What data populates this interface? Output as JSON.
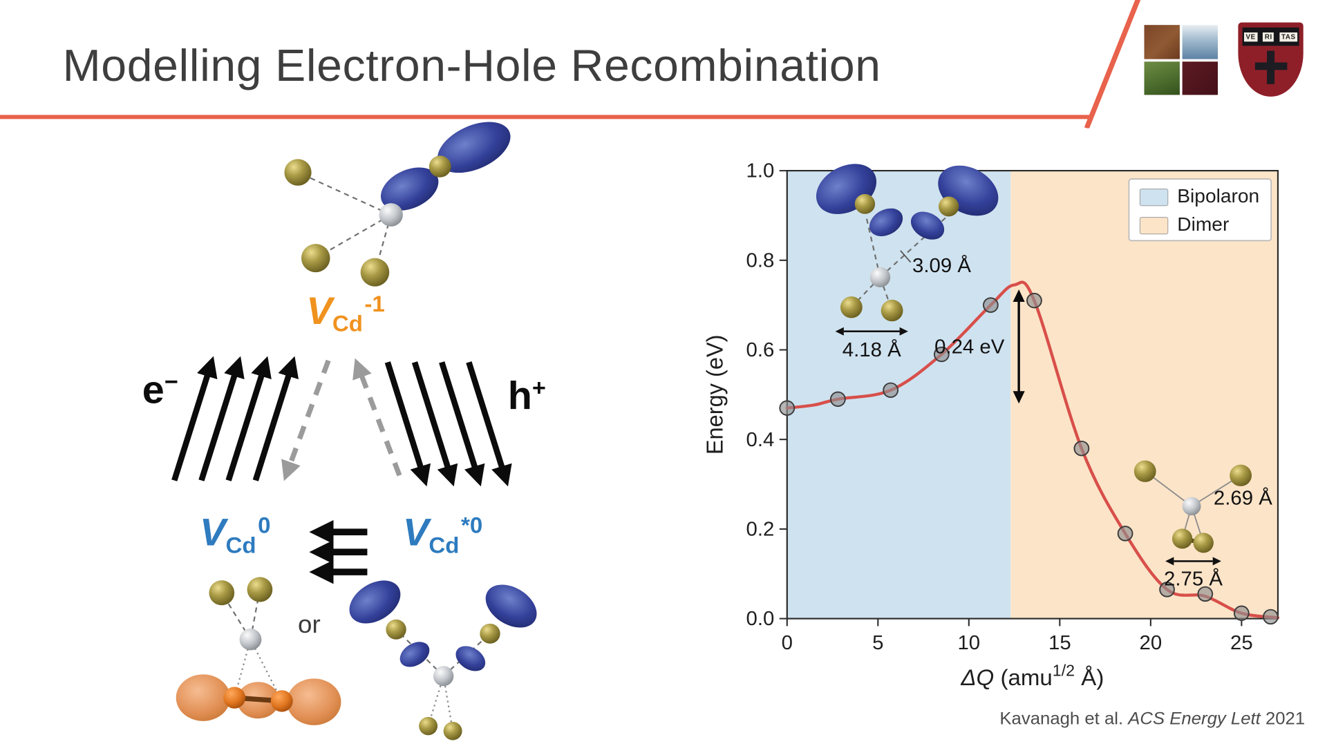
{
  "slide": {
    "title": "Modelling Electron-Hole Recombination",
    "accent_color": "#e8624c",
    "citation": {
      "authors": "Kavanagh et al. ",
      "journal": "ACS Energy Lett",
      "year": " 2021"
    }
  },
  "logos": {
    "shield_logo": "university-shield-logo",
    "crest_logo": "veritas-crest-logo",
    "veritas": [
      "VE",
      "RI",
      "TAS"
    ]
  },
  "diagram": {
    "excited_state": {
      "main": "V",
      "sub": "Cd",
      "sup": "-1"
    },
    "electron": {
      "main": "e",
      "sup": "−"
    },
    "hole": {
      "main": "h",
      "sup": "+"
    },
    "ground_state": {
      "main": "V",
      "sub": "Cd",
      "sup": "0"
    },
    "metastable_state": {
      "main": "V",
      "sub": "Cd",
      "sup": "*0"
    },
    "or_label": "or"
  },
  "chart_data": {
    "type": "line",
    "title": "",
    "xlabel": "ΔQ (amu^{1/2} Å)",
    "xlabel_parts": {
      "pre_italic": "ΔQ",
      "pre": " (amu",
      "sup": "1/2",
      "post": " Å)"
    },
    "ylabel": "Energy (eV)",
    "xlim": [
      0,
      27
    ],
    "ylim": [
      0,
      1.0
    ],
    "xticks": [
      0,
      5,
      10,
      15,
      20,
      25
    ],
    "yticks": [
      0,
      0.2,
      0.4,
      0.6,
      0.8,
      1.0
    ],
    "grid": false,
    "legend_position": "upper right",
    "curve_color": "#d84f4a",
    "point_color": "#8f8f8f",
    "regions": [
      {
        "label": "Bipolaron",
        "x0": 0,
        "x1": 12.3,
        "color": "#cfe2ef"
      },
      {
        "label": "Dimer",
        "x0": 12.3,
        "x1": 27,
        "color": "#fce4c8"
      }
    ],
    "legend": [
      {
        "label": "Bipolaron",
        "color": "#cfe2ef"
      },
      {
        "label": "Dimer",
        "color": "#fce4c8"
      }
    ],
    "series": [
      {
        "name": "energy path",
        "points": [
          [
            0,
            0.47
          ],
          [
            2.8,
            0.49
          ],
          [
            5.7,
            0.51
          ],
          [
            8.5,
            0.59
          ],
          [
            11.2,
            0.7
          ],
          [
            13.6,
            0.71
          ],
          [
            16.2,
            0.38
          ],
          [
            18.6,
            0.19
          ],
          [
            20.9,
            0.065
          ],
          [
            23.0,
            0.055
          ],
          [
            25.0,
            0.012
          ],
          [
            26.6,
            0.004
          ]
        ]
      }
    ],
    "curve": [
      [
        0,
        0.47
      ],
      [
        1.5,
        0.477
      ],
      [
        2.8,
        0.49
      ],
      [
        5.7,
        0.51
      ],
      [
        8.5,
        0.59
      ],
      [
        11.2,
        0.7
      ],
      [
        12.5,
        0.745
      ],
      [
        13.6,
        0.71
      ],
      [
        16.2,
        0.38
      ],
      [
        18.6,
        0.19
      ],
      [
        20.9,
        0.065
      ],
      [
        23.0,
        0.05
      ],
      [
        25.0,
        0.012
      ],
      [
        27,
        0.002
      ]
    ],
    "annotations": {
      "barrier": {
        "label": "0.24 eV",
        "x": 12.75,
        "y_top": 0.735,
        "y_bottom": 0.48
      },
      "bipolaron_bond": "3.09 Å",
      "bipolaron_distance": "4.18 Å",
      "dimer_bond_upper": "2.69 Å",
      "dimer_bond": "2.75 Å"
    }
  }
}
